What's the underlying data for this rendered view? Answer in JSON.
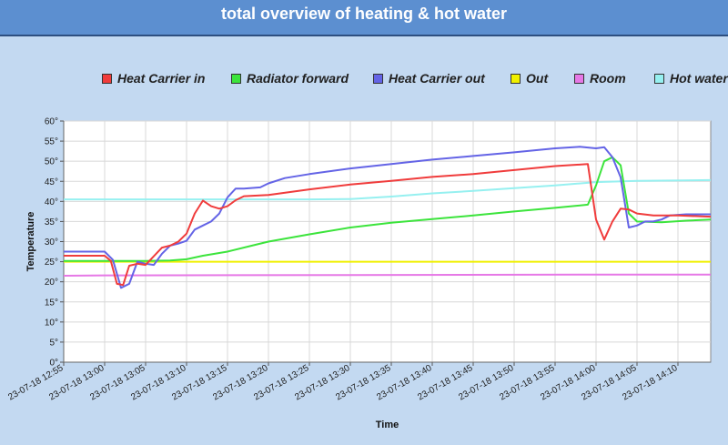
{
  "header": {
    "title": "total overview of heating & hot water"
  },
  "colors": {
    "background": "#c3d9f1",
    "header": "#5c8fd0",
    "plot_bg": "#ffffff",
    "grid": "#d8d8d8"
  },
  "chart_data": {
    "type": "line",
    "title": "",
    "xlabel": "Time",
    "ylabel": "Temperature",
    "ylim": [
      0,
      60
    ],
    "y_ticks": [
      "0°",
      "5°",
      "10°",
      "15°",
      "20°",
      "25°",
      "30°",
      "35°",
      "40°",
      "45°",
      "50°",
      "55°",
      "60°"
    ],
    "x_range_minutes": [
      "12:55",
      "14:14"
    ],
    "x_ticks": [
      "23-07-18 12:55",
      "23-07-18 13:00",
      "23-07-18 13:05",
      "23-07-18 13:10",
      "23-07-18 13:15",
      "23-07-18 13:20",
      "23-07-18 13:25",
      "23-07-18 13:30",
      "23-07-18 13:35",
      "23-07-18 13:40",
      "23-07-18 13:45",
      "23-07-18 13:50",
      "23-07-18 13:55",
      "23-07-18 14:00",
      "23-07-18 14:05",
      "23-07-18 14:10"
    ],
    "grid": true,
    "legend_position": "top",
    "series": [
      {
        "name": "Heat Carrier in",
        "color": "#f03c3c",
        "points": [
          [
            "12:55",
            26.5
          ],
          [
            "13:00",
            26.5
          ],
          [
            "13:00:45",
            25.2
          ],
          [
            "13:01:30",
            19.5
          ],
          [
            "13:02:15",
            19.2
          ],
          [
            "13:03",
            24
          ],
          [
            "13:04",
            24.5
          ],
          [
            "13:05",
            24.2
          ],
          [
            "13:07",
            28.5
          ],
          [
            "13:08",
            29
          ],
          [
            "13:09",
            30
          ],
          [
            "13:10",
            32
          ],
          [
            "13:11",
            37
          ],
          [
            "13:12",
            40.2
          ],
          [
            "13:13",
            38.8
          ],
          [
            "13:14",
            38.2
          ],
          [
            "13:15",
            38.8
          ],
          [
            "13:16",
            40.3
          ],
          [
            "13:17",
            41.3
          ],
          [
            "13:20",
            41.6
          ],
          [
            "13:25",
            43
          ],
          [
            "13:30",
            44.2
          ],
          [
            "13:35",
            45.1
          ],
          [
            "13:40",
            46.1
          ],
          [
            "13:45",
            46.8
          ],
          [
            "13:50",
            47.8
          ],
          [
            "13:55",
            48.8
          ],
          [
            "13:59",
            49.3
          ],
          [
            "14:00",
            35.5
          ],
          [
            "14:01",
            30.5
          ],
          [
            "14:02",
            35
          ],
          [
            "14:03",
            38.2
          ],
          [
            "14:04",
            38
          ],
          [
            "14:05",
            37
          ],
          [
            "14:07",
            36.5
          ],
          [
            "14:10",
            36.5
          ],
          [
            "14:14",
            36.2
          ]
        ]
      },
      {
        "name": "Radiator forward",
        "color": "#3ce43c",
        "points": [
          [
            "12:55",
            25.2
          ],
          [
            "13:00",
            25.2
          ],
          [
            "13:05",
            25.2
          ],
          [
            "13:08",
            25.3
          ],
          [
            "13:10",
            25.6
          ],
          [
            "13:12",
            26.5
          ],
          [
            "13:15",
            27.5
          ],
          [
            "13:18",
            29
          ],
          [
            "13:20",
            30
          ],
          [
            "13:25",
            31.8
          ],
          [
            "13:30",
            33.5
          ],
          [
            "13:35",
            34.7
          ],
          [
            "13:40",
            35.6
          ],
          [
            "13:45",
            36.5
          ],
          [
            "13:50",
            37.5
          ],
          [
            "13:55",
            38.4
          ],
          [
            "13:59",
            39.2
          ],
          [
            "14:00",
            44
          ],
          [
            "14:01",
            50
          ],
          [
            "14:02",
            51
          ],
          [
            "14:03",
            49
          ],
          [
            "14:04",
            37
          ],
          [
            "14:05",
            35
          ],
          [
            "14:08",
            34.8
          ],
          [
            "14:11",
            35.2
          ],
          [
            "14:14",
            35.5
          ]
        ]
      },
      {
        "name": "Heat Carrier out",
        "color": "#6464e6",
        "points": [
          [
            "12:55",
            27.5
          ],
          [
            "13:00",
            27.5
          ],
          [
            "13:01",
            25.5
          ],
          [
            "13:02",
            18.5
          ],
          [
            "13:03",
            19.5
          ],
          [
            "13:04",
            25
          ],
          [
            "13:05",
            24.5
          ],
          [
            "13:06",
            24.2
          ],
          [
            "13:07",
            27
          ],
          [
            "13:08",
            29
          ],
          [
            "13:09",
            29.5
          ],
          [
            "13:10",
            30.2
          ],
          [
            "13:11",
            33
          ],
          [
            "13:12",
            34
          ],
          [
            "13:13",
            35
          ],
          [
            "13:14",
            37
          ],
          [
            "13:15",
            41
          ],
          [
            "13:16",
            43.2
          ],
          [
            "13:17",
            43.2
          ],
          [
            "13:19",
            43.5
          ],
          [
            "13:20",
            44.5
          ],
          [
            "13:22",
            45.8
          ],
          [
            "13:25",
            46.8
          ],
          [
            "13:30",
            48.2
          ],
          [
            "13:35",
            49.3
          ],
          [
            "13:40",
            50.4
          ],
          [
            "13:45",
            51.3
          ],
          [
            "13:50",
            52.2
          ],
          [
            "13:55",
            53.2
          ],
          [
            "13:58",
            53.6
          ],
          [
            "14:00",
            53.2
          ],
          [
            "14:01",
            53.5
          ],
          [
            "14:02",
            51
          ],
          [
            "14:03",
            46
          ],
          [
            "14:04",
            33.5
          ],
          [
            "14:05",
            34
          ],
          [
            "14:06",
            35
          ],
          [
            "14:07",
            35
          ],
          [
            "14:08",
            35.5
          ],
          [
            "14:09",
            36.5
          ],
          [
            "14:11",
            36.8
          ],
          [
            "14:14",
            36.8
          ]
        ]
      },
      {
        "name": "Out",
        "color": "#f0f000",
        "points": [
          [
            "12:55",
            25
          ],
          [
            "13:10",
            25
          ],
          [
            "13:30",
            25
          ],
          [
            "13:50",
            25
          ],
          [
            "14:10",
            25
          ],
          [
            "14:14",
            25
          ]
        ]
      },
      {
        "name": "Room",
        "color": "#e678e6",
        "points": [
          [
            "12:55",
            21.5
          ],
          [
            "13:00",
            21.6
          ],
          [
            "13:30",
            21.7
          ],
          [
            "14:00",
            21.8
          ],
          [
            "14:14",
            21.8
          ]
        ]
      },
      {
        "name": "Hot water",
        "color": "#96f0f0",
        "points": [
          [
            "12:55",
            40.5
          ],
          [
            "13:10",
            40.5
          ],
          [
            "13:25",
            40.5
          ],
          [
            "13:30",
            40.6
          ],
          [
            "13:35",
            41.2
          ],
          [
            "13:40",
            42
          ],
          [
            "13:45",
            42.6
          ],
          [
            "13:50",
            43.3
          ],
          [
            "13:55",
            44
          ],
          [
            "14:00",
            44.8
          ],
          [
            "14:05",
            45.1
          ],
          [
            "14:14",
            45.3
          ]
        ]
      }
    ]
  }
}
